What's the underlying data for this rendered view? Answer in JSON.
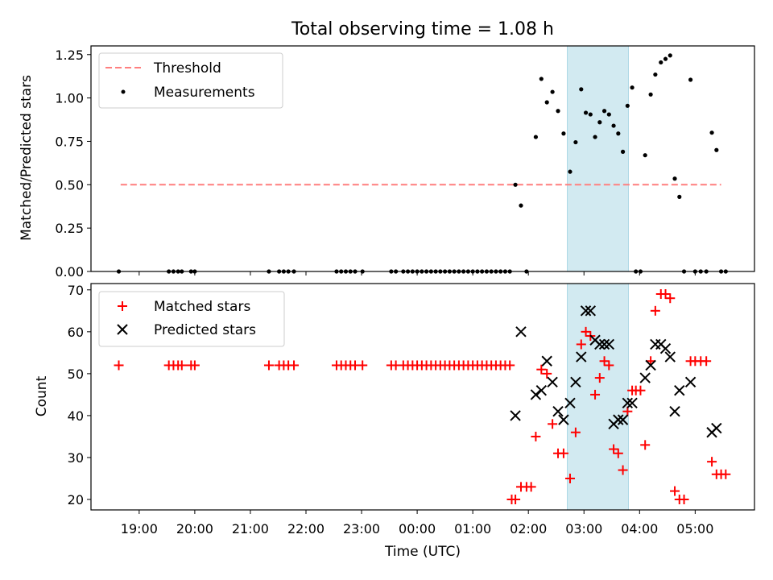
{
  "title": "Total observing time = 1.08 h",
  "colors": {
    "threshold": "#ff7f7f",
    "measurement": "#000000",
    "matched": "#ff0000",
    "predicted": "#000000",
    "shade": "#add8e6"
  },
  "chart_data": [
    {
      "type": "scatter",
      "ylabel": "Matched/Predicted stars",
      "ylim": [
        0,
        1.3
      ],
      "xlim": [
        "18:08",
        "06:04"
      ],
      "yticks": [
        0,
        0.25,
        0.5,
        0.75,
        1.0,
        1.25
      ],
      "ytick_labels": [
        "0.00",
        "0.25",
        "0.50",
        "0.75",
        "1.00",
        "1.25"
      ],
      "shaded_span": [
        "02:42",
        "03:48"
      ],
      "legend": {
        "location": "top-left",
        "entries": [
          "Threshold",
          "Measurements"
        ]
      },
      "threshold": {
        "name": "Threshold",
        "y": 0.5,
        "x": [
          "18:40",
          "05:28"
        ]
      },
      "series": [
        {
          "name": "Measurements",
          "x": [
            "18:38",
            "19:32",
            "19:37",
            "19:42",
            "19:46",
            "19:56",
            "20:00",
            "21:20",
            "21:31",
            "21:36",
            "21:41",
            "21:47",
            "22:33",
            "22:38",
            "22:43",
            "22:48",
            "22:53",
            "23:01",
            "23:32",
            "23:37",
            "23:45",
            "23:50",
            "23:55",
            "24:00",
            "24:05",
            "24:10",
            "24:15",
            "24:20",
            "24:25",
            "24:30",
            "24:35",
            "24:40",
            "24:45",
            "24:50",
            "24:55",
            "25:00",
            "25:05",
            "25:10",
            "25:15",
            "25:20",
            "25:25",
            "25:30",
            "25:35",
            "25:40",
            "25:46",
            "25:52",
            "25:58",
            "26:08",
            "26:14",
            "26:20",
            "26:26",
            "26:32",
            "26:38",
            "26:45",
            "26:51",
            "26:57",
            "27:02",
            "27:07",
            "27:12",
            "27:17",
            "27:22",
            "27:27",
            "27:32",
            "27:37",
            "27:42",
            "27:47",
            "27:52",
            "27:56",
            "28:01",
            "28:06",
            "28:12",
            "28:17",
            "28:23",
            "28:28",
            "28:33",
            "28:38",
            "28:43",
            "28:48",
            "28:55",
            "29:00",
            "29:06",
            "29:12",
            "29:18",
            "29:23",
            "29:28",
            "29:33"
          ],
          "y": [
            0.0,
            0.0,
            0.0,
            0.0,
            0.0,
            0.0,
            0.0,
            0.0,
            0.0,
            0.0,
            0.0,
            0.0,
            0.0,
            0.0,
            0.0,
            0.0,
            0.0,
            0.0,
            0.0,
            0.0,
            0.0,
            0.0,
            0.0,
            0.0,
            0.0,
            0.0,
            0.0,
            0.0,
            0.0,
            0.0,
            0.0,
            0.0,
            0.0,
            0.0,
            0.0,
            0.0,
            0.0,
            0.0,
            0.0,
            0.0,
            0.0,
            0.0,
            0.0,
            0.0,
            0.5,
            0.38,
            0.0,
            0.775,
            1.11,
            0.975,
            1.035,
            0.925,
            0.795,
            0.575,
            0.745,
            1.05,
            0.915,
            0.905,
            0.775,
            0.86,
            0.925,
            0.905,
            0.84,
            0.795,
            0.69,
            0.955,
            1.06,
            0.0,
            0.0,
            0.67,
            1.02,
            1.135,
            1.205,
            1.225,
            1.245,
            0.535,
            0.43,
            0.0,
            1.105,
            0.0,
            0.0,
            0.0,
            0.8,
            0.7,
            0.0,
            0.0
          ]
        }
      ]
    },
    {
      "type": "scatter",
      "xlabel": "Time (UTC)",
      "ylabel": "Count",
      "ylim": [
        17.5,
        71.5
      ],
      "xlim": [
        "18:08",
        "06:04"
      ],
      "xticks": [
        "19:00",
        "20:00",
        "21:00",
        "22:00",
        "23:00",
        "00:00",
        "01:00",
        "02:00",
        "03:00",
        "04:00",
        "05:00"
      ],
      "yticks": [
        20,
        30,
        40,
        50,
        60,
        70
      ],
      "shaded_span": [
        "02:42",
        "03:48"
      ],
      "legend": {
        "location": "top-left",
        "entries": [
          "Matched stars",
          "Predicted stars"
        ]
      },
      "series": [
        {
          "name": "Matched stars",
          "x": [
            "18:38",
            "19:32",
            "19:37",
            "19:42",
            "19:46",
            "19:56",
            "20:00",
            "21:20",
            "21:31",
            "21:36",
            "21:41",
            "21:47",
            "22:33",
            "22:38",
            "22:43",
            "22:48",
            "22:53",
            "23:01",
            "23:32",
            "23:37",
            "23:45",
            "23:50",
            "23:55",
            "24:00",
            "24:05",
            "24:10",
            "24:15",
            "24:20",
            "24:25",
            "24:30",
            "24:35",
            "24:40",
            "24:45",
            "24:50",
            "24:55",
            "25:00",
            "25:05",
            "25:10",
            "25:15",
            "25:20",
            "25:25",
            "25:30",
            "25:35",
            "25:40",
            "25:42",
            "25:46",
            "25:52",
            "25:58",
            "26:03",
            "26:08",
            "26:14",
            "26:20",
            "26:26",
            "26:32",
            "26:38",
            "26:45",
            "26:51",
            "26:57",
            "27:02",
            "27:07",
            "27:12",
            "27:17",
            "27:22",
            "27:27",
            "27:32",
            "27:37",
            "27:42",
            "27:47",
            "27:52",
            "27:56",
            "28:01",
            "28:06",
            "28:12",
            "28:17",
            "28:23",
            "28:28",
            "28:33",
            "28:38",
            "28:43",
            "28:48",
            "28:55",
            "29:00",
            "29:06",
            "29:12",
            "29:18",
            "29:23",
            "29:28",
            "29:33"
          ],
          "y": [
            52,
            52,
            52,
            52,
            52,
            52,
            52,
            52,
            52,
            52,
            52,
            52,
            52,
            52,
            52,
            52,
            52,
            52,
            52,
            52,
            52,
            52,
            52,
            52,
            52,
            52,
            52,
            52,
            52,
            52,
            52,
            52,
            52,
            52,
            52,
            52,
            52,
            52,
            52,
            52,
            52,
            52,
            52,
            52,
            20,
            20,
            23,
            23,
            23,
            35,
            51,
            50,
            38,
            31,
            31,
            25,
            36,
            57,
            60,
            59,
            45,
            49,
            53,
            52,
            32,
            31,
            27,
            41,
            46,
            46,
            46,
            33,
            53,
            65,
            69,
            69,
            68,
            22,
            20,
            20,
            53,
            53,
            53,
            53,
            29,
            26,
            26,
            26
          ]
        },
        {
          "name": "Predicted stars",
          "x": [
            "25:46",
            "25:52",
            "26:08",
            "26:14",
            "26:20",
            "26:26",
            "26:32",
            "26:38",
            "26:45",
            "26:51",
            "26:57",
            "27:02",
            "27:07",
            "27:12",
            "27:17",
            "27:22",
            "27:27",
            "27:32",
            "27:37",
            "27:42",
            "27:47",
            "27:52",
            "28:06",
            "28:12",
            "28:17",
            "28:23",
            "28:28",
            "28:33",
            "28:38",
            "28:43",
            "28:55",
            "29:18",
            "29:23"
          ],
          "y": [
            40,
            60,
            45,
            46,
            53,
            48,
            41,
            39,
            43,
            48,
            54,
            65,
            65,
            58,
            57,
            57,
            57,
            38,
            39,
            39,
            43,
            43,
            49,
            52,
            57,
            57,
            56,
            54,
            41,
            46,
            48,
            36,
            37
          ]
        }
      ]
    }
  ]
}
